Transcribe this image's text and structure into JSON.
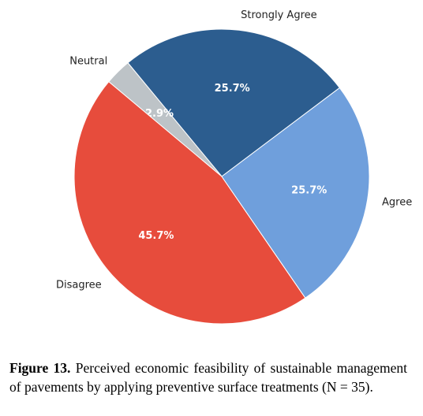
{
  "chart_data": {
    "type": "pie",
    "categories": [
      "Strongly Agree",
      "Neutral",
      "Disagree",
      "Agree"
    ],
    "values": [
      25.7,
      2.9,
      45.7,
      25.7
    ],
    "value_labels": [
      "25.7%",
      "2.9%",
      "45.7%",
      "25.7%"
    ],
    "colors": [
      "#2c5d8f",
      "#bdc3c7",
      "#e74c3c",
      "#6f9fdc"
    ]
  },
  "caption": {
    "label": "Figure 13.",
    "text": "Perceived economic feasibility of sustainable management of pavements by applying preventive surface treatments (N = 35)."
  }
}
